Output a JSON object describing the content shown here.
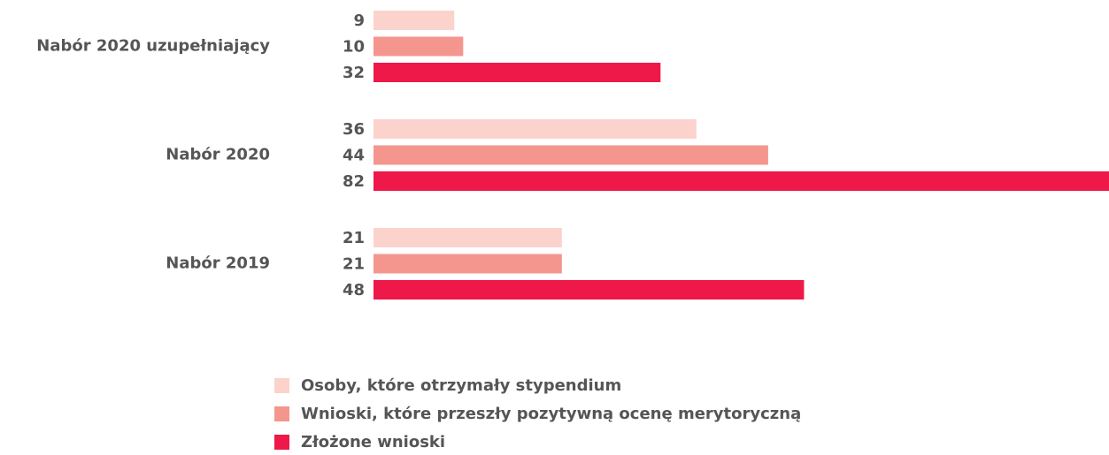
{
  "chart_data": {
    "type": "hbar",
    "categories": [
      "Nabór 2020 uzupełniający",
      "Nabór 2020",
      "Nabór 2019"
    ],
    "series": [
      {
        "name": "Osoby, które otrzymały stypendium",
        "color": "#fbd3cc",
        "values": [
          9,
          36,
          21
        ]
      },
      {
        "name": "Wnioski, które przeszły pozytywną ocenę merytoryczną",
        "color": "#f4968e",
        "values": [
          10,
          44,
          21
        ]
      },
      {
        "name": "Złożone wnioski",
        "color": "#ee1849",
        "values": [
          32,
          82,
          48
        ]
      }
    ],
    "legend": "bottom"
  }
}
